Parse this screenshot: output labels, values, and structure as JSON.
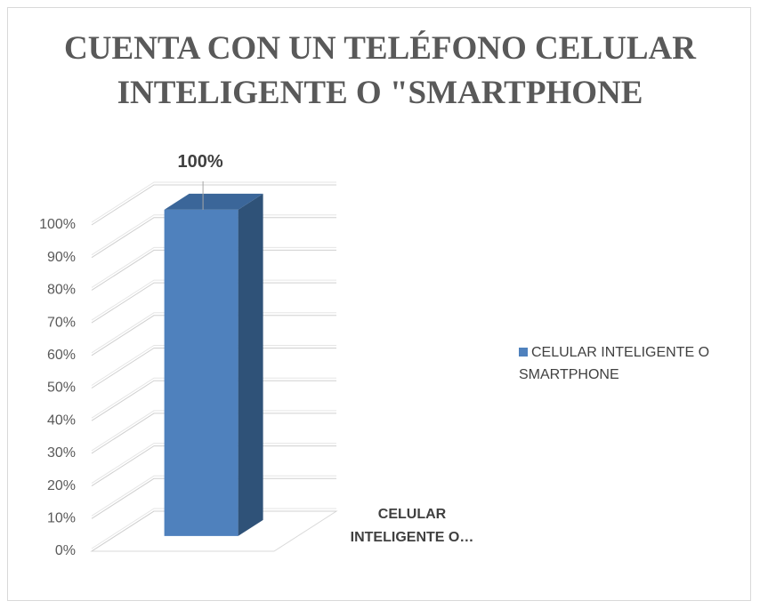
{
  "chart_data": {
    "type": "bar3d",
    "title": "CUENTA CON UN TELÉFONO CELULAR INTELIGENTE O \"SMARTPHONE",
    "categories": [
      "CELULAR INTELIGENTE O…"
    ],
    "series": [
      {
        "name": "CELULAR INTELIGENTE O SMARTPHONE",
        "color": "#4f81bd",
        "values": [
          100
        ],
        "value_labels": [
          "100%"
        ]
      }
    ],
    "ylim": [
      0,
      100
    ],
    "yticks": [
      {
        "value": 0,
        "label": "0%"
      },
      {
        "value": 10,
        "label": "10%"
      },
      {
        "value": 20,
        "label": "20%"
      },
      {
        "value": 30,
        "label": "30%"
      },
      {
        "value": 40,
        "label": "40%"
      },
      {
        "value": 50,
        "label": "50%"
      },
      {
        "value": 60,
        "label": "60%"
      },
      {
        "value": 70,
        "label": "70%"
      },
      {
        "value": 80,
        "label": "80%"
      },
      {
        "value": 90,
        "label": "90%"
      },
      {
        "value": 100,
        "label": "100%"
      }
    ],
    "grid": true,
    "legend": "right"
  }
}
